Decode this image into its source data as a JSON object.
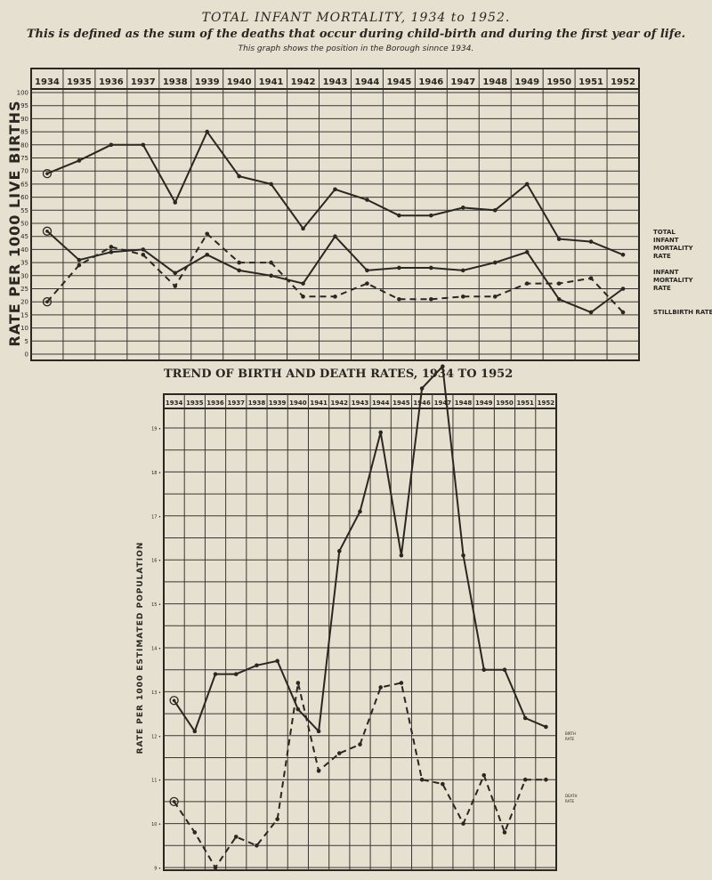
{
  "header": {
    "title": "TOTAL INFANT MORTALITY, 1934 to 1952.",
    "subtitle": "This is defined as the sum of the deaths that occur during child-birth and during the first year of life.",
    "note": "This graph shows the position in the Borough sinnce 1934."
  },
  "chart_data": [
    {
      "type": "line",
      "title": "",
      "ylabel": "RATE PER 1000 LIVE BIRTHS",
      "xlabel": "",
      "categories": [
        "1934",
        "1935",
        "1936",
        "1937",
        "1938",
        "1939",
        "1940",
        "1941",
        "1942",
        "1943",
        "1944",
        "1945",
        "1946",
        "1947",
        "1948",
        "1949",
        "1950",
        "1951",
        "1952"
      ],
      "ylim": [
        0,
        100
      ],
      "yticks": [
        0,
        5,
        10,
        15,
        20,
        25,
        30,
        35,
        40,
        45,
        50,
        55,
        60,
        65,
        70,
        75,
        80,
        85,
        90,
        95,
        100
      ],
      "grid": true,
      "legend_position": "right",
      "series": [
        {
          "name": "TOTAL INFANT MORTALITY RATE",
          "style": "solid",
          "color": "#2a2622",
          "values": [
            69,
            74,
            80,
            80,
            58,
            85,
            68,
            65,
            48,
            63,
            59,
            53,
            53,
            56,
            55,
            65,
            44,
            43,
            38
          ]
        },
        {
          "name": "INFANT MORTALITY RATE",
          "style": "solid",
          "color": "#2a2622",
          "values": [
            47,
            36,
            39,
            40,
            31,
            38,
            32,
            30,
            27,
            45,
            32,
            33,
            33,
            32,
            35,
            39,
            21,
            16,
            25
          ]
        },
        {
          "name": "STILLBIRTH RATE",
          "style": "dashed",
          "color": "#2a2622",
          "values": [
            20,
            34,
            41,
            38,
            26,
            46,
            35,
            35,
            22,
            22,
            27,
            21,
            21,
            22,
            22,
            27,
            27,
            29,
            16
          ]
        }
      ]
    },
    {
      "type": "line",
      "title": "TREND OF BIRTH AND DEATH RATES, 1934 TO 1952",
      "ylabel": "RATE PER 1000 ESTIMATED POPULATION",
      "xlabel": "",
      "categories": [
        "1934",
        "1935",
        "1936",
        "1937",
        "1938",
        "1939",
        "1940",
        "1941",
        "1942",
        "1943",
        "1944",
        "1945",
        "1946",
        "1947",
        "1948",
        "1949",
        "1950",
        "1951",
        "1952"
      ],
      "ylim": [
        9,
        19
      ],
      "yticks": [
        9,
        10,
        11,
        12,
        13,
        14,
        15,
        16,
        17,
        18,
        19
      ],
      "ytick_labels": [
        "9 •",
        "10 •",
        "11 •",
        "12 •",
        "13 •",
        "14 •",
        "15 •",
        "16 •",
        "17 •",
        "18 •",
        "19 •"
      ],
      "grid": true,
      "legend_position": "right",
      "series": [
        {
          "name": "BIRTH RATE",
          "style": "solid",
          "color": "#2a2622",
          "values": [
            12.8,
            12.1,
            13.4,
            13.4,
            13.6,
            13.7,
            12.6,
            12.1,
            16.2,
            17.1,
            18.9,
            16.1,
            19.9,
            20.4,
            16.1,
            13.5,
            13.5,
            12.4,
            12.2
          ]
        },
        {
          "name": "DEATH RATE",
          "style": "dashed",
          "color": "#2a2622",
          "values": [
            10.5,
            9.8,
            9.0,
            9.7,
            9.5,
            10.1,
            13.2,
            11.2,
            11.6,
            11.8,
            13.1,
            13.2,
            11.0,
            10.9,
            10.0,
            11.1,
            9.8,
            11.0,
            11.0
          ]
        }
      ]
    }
  ]
}
